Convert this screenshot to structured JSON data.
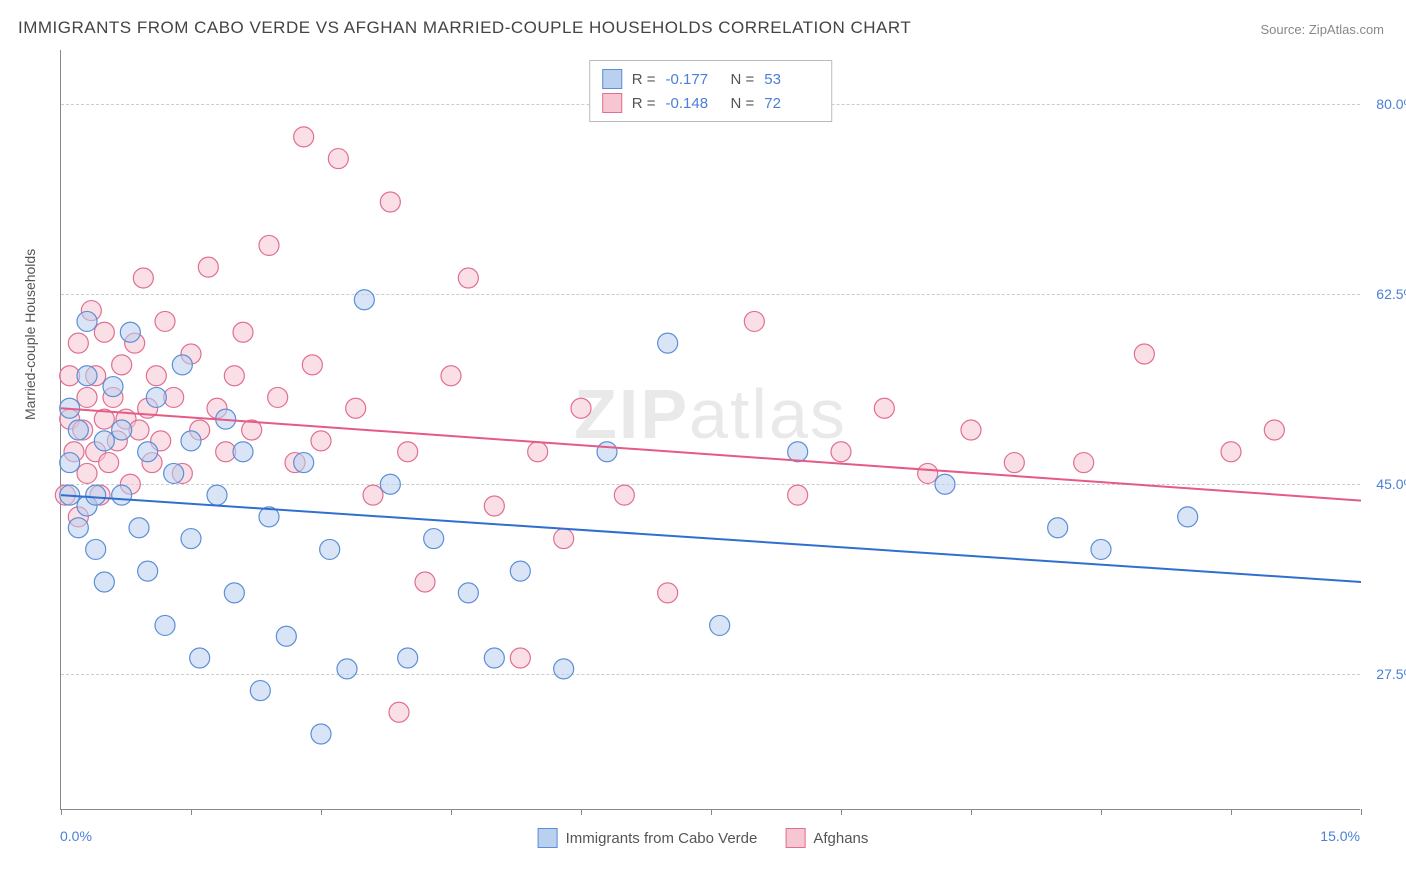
{
  "title": "IMMIGRANTS FROM CABO VERDE VS AFGHAN MARRIED-COUPLE HOUSEHOLDS CORRELATION CHART",
  "source": "Source: ZipAtlas.com",
  "watermark_bold": "ZIP",
  "watermark_rest": "atlas",
  "chart": {
    "type": "scatter",
    "background_color": "#ffffff",
    "grid_color": "#cccccc",
    "border_color": "#888888",
    "xlim": [
      0.0,
      15.0
    ],
    "ylim": [
      15.0,
      85.0
    ],
    "x_tick_positions": [
      0,
      1.5,
      3.0,
      4.5,
      6.0,
      7.5,
      9.0,
      10.5,
      12.0,
      13.5,
      15.0
    ],
    "x_tick_labels": {
      "left": "0.0%",
      "right": "15.0%"
    },
    "y_gridlines": [
      27.5,
      45.0,
      62.5,
      80.0
    ],
    "y_tick_labels": [
      "27.5%",
      "45.0%",
      "62.5%",
      "80.0%"
    ],
    "ylabel": "Married-couple Households",
    "marker_radius": 10,
    "marker_opacity": 0.55,
    "line_width": 2,
    "series": [
      {
        "name": "Immigrants from Cabo Verde",
        "fill_color": "#b9d0ef",
        "stroke_color": "#5b8fd6",
        "line_color": "#2f6fd0",
        "R": "-0.177",
        "N": "53",
        "trend": {
          "x1": 0.0,
          "y1": 44.0,
          "x2": 15.0,
          "y2": 36.0
        },
        "points": [
          [
            0.1,
            44
          ],
          [
            0.1,
            52
          ],
          [
            0.1,
            47
          ],
          [
            0.2,
            41
          ],
          [
            0.2,
            50
          ],
          [
            0.3,
            43
          ],
          [
            0.3,
            60
          ],
          [
            0.3,
            55
          ],
          [
            0.4,
            44
          ],
          [
            0.4,
            39
          ],
          [
            0.5,
            49
          ],
          [
            0.5,
            36
          ],
          [
            0.6,
            54
          ],
          [
            0.7,
            44
          ],
          [
            0.7,
            50
          ],
          [
            0.8,
            59
          ],
          [
            0.9,
            41
          ],
          [
            1.0,
            48
          ],
          [
            1.0,
            37
          ],
          [
            1.1,
            53
          ],
          [
            1.2,
            32
          ],
          [
            1.3,
            46
          ],
          [
            1.4,
            56
          ],
          [
            1.5,
            40
          ],
          [
            1.5,
            49
          ],
          [
            1.6,
            29
          ],
          [
            1.8,
            44
          ],
          [
            1.9,
            51
          ],
          [
            2.0,
            35
          ],
          [
            2.1,
            48
          ],
          [
            2.3,
            26
          ],
          [
            2.4,
            42
          ],
          [
            2.6,
            31
          ],
          [
            2.8,
            47
          ],
          [
            3.0,
            22
          ],
          [
            3.1,
            39
          ],
          [
            3.3,
            28
          ],
          [
            3.5,
            62
          ],
          [
            3.8,
            45
          ],
          [
            4.0,
            29
          ],
          [
            4.3,
            40
          ],
          [
            4.7,
            35
          ],
          [
            5.0,
            29
          ],
          [
            5.3,
            37
          ],
          [
            5.8,
            28
          ],
          [
            6.3,
            48
          ],
          [
            7.0,
            58
          ],
          [
            7.6,
            32
          ],
          [
            8.5,
            48
          ],
          [
            10.2,
            45
          ],
          [
            11.5,
            41
          ],
          [
            12.0,
            39
          ],
          [
            13.0,
            42
          ]
        ]
      },
      {
        "name": "Afghans",
        "fill_color": "#f6c6d2",
        "stroke_color": "#e06f91",
        "line_color": "#e55a86",
        "R": "-0.148",
        "N": "72",
        "trend": {
          "x1": 0.0,
          "y1": 52.0,
          "x2": 15.0,
          "y2": 43.5
        },
        "points": [
          [
            0.05,
            44
          ],
          [
            0.1,
            51
          ],
          [
            0.1,
            55
          ],
          [
            0.15,
            48
          ],
          [
            0.2,
            42
          ],
          [
            0.2,
            58
          ],
          [
            0.25,
            50
          ],
          [
            0.3,
            46
          ],
          [
            0.3,
            53
          ],
          [
            0.35,
            61
          ],
          [
            0.4,
            48
          ],
          [
            0.4,
            55
          ],
          [
            0.45,
            44
          ],
          [
            0.5,
            51
          ],
          [
            0.5,
            59
          ],
          [
            0.55,
            47
          ],
          [
            0.6,
            53
          ],
          [
            0.65,
            49
          ],
          [
            0.7,
            56
          ],
          [
            0.75,
            51
          ],
          [
            0.8,
            45
          ],
          [
            0.85,
            58
          ],
          [
            0.9,
            50
          ],
          [
            0.95,
            64
          ],
          [
            1.0,
            52
          ],
          [
            1.05,
            47
          ],
          [
            1.1,
            55
          ],
          [
            1.15,
            49
          ],
          [
            1.2,
            60
          ],
          [
            1.3,
            53
          ],
          [
            1.4,
            46
          ],
          [
            1.5,
            57
          ],
          [
            1.6,
            50
          ],
          [
            1.7,
            65
          ],
          [
            1.8,
            52
          ],
          [
            1.9,
            48
          ],
          [
            2.0,
            55
          ],
          [
            2.1,
            59
          ],
          [
            2.2,
            50
          ],
          [
            2.4,
            67
          ],
          [
            2.5,
            53
          ],
          [
            2.7,
            47
          ],
          [
            2.8,
            77
          ],
          [
            2.9,
            56
          ],
          [
            3.0,
            49
          ],
          [
            3.2,
            75
          ],
          [
            3.4,
            52
          ],
          [
            3.6,
            44
          ],
          [
            3.8,
            71
          ],
          [
            3.9,
            24
          ],
          [
            4.0,
            48
          ],
          [
            4.2,
            36
          ],
          [
            4.5,
            55
          ],
          [
            4.7,
            64
          ],
          [
            5.0,
            43
          ],
          [
            5.3,
            29
          ],
          [
            5.5,
            48
          ],
          [
            5.8,
            40
          ],
          [
            6.0,
            52
          ],
          [
            6.5,
            44
          ],
          [
            7.0,
            35
          ],
          [
            8.0,
            60
          ],
          [
            8.5,
            44
          ],
          [
            9.0,
            48
          ],
          [
            9.5,
            52
          ],
          [
            10.0,
            46
          ],
          [
            10.5,
            50
          ],
          [
            11.0,
            47
          ],
          [
            11.8,
            47
          ],
          [
            12.5,
            57
          ],
          [
            13.5,
            48
          ],
          [
            14.0,
            50
          ]
        ]
      }
    ]
  },
  "legend_bottom": [
    {
      "label": "Immigrants from Cabo Verde",
      "series": 0
    },
    {
      "label": "Afghans",
      "series": 1
    }
  ]
}
